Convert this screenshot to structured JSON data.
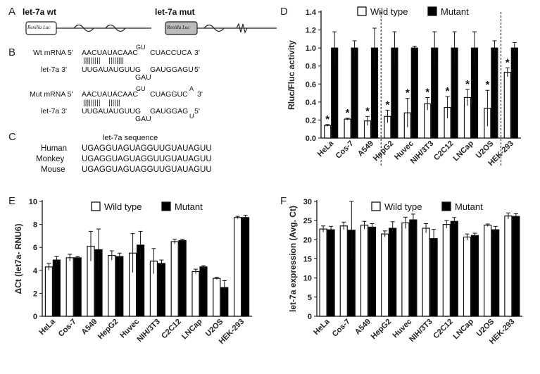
{
  "panels": {
    "A": "A",
    "B": "B",
    "C": "C",
    "D": "D",
    "E": "E",
    "F": "F"
  },
  "panel_a": {
    "wt_title": "let-7a wt",
    "mut_title": "let-7a mut",
    "box_label": "Renilla Luc"
  },
  "panel_b": {
    "wt_line1_prefix": "Wt mRNA 5'",
    "wt_line1_seq": "AACUAUACAAC",
    "wt_line1_bulge": "GU",
    "wt_line1_seq2": "CUACCUCA",
    "wt_line1_end": "3'",
    "wt_pairs": "|||||||||    ||||||||",
    "wt_line2_prefix": "let-7a 3'",
    "wt_line2_seq": "UUGAUAUGUUG",
    "wt_line2_seq2": "GAUGGAGU",
    "wt_line2_end": "5'",
    "wt_loop": "GAU",
    "mut_line1_prefix": "Mut mRNA 5'",
    "mut_line1_seq": "AACUAUACAAC",
    "mut_line1_bulge": "GU",
    "mut_line1_seq2": "CUAGGUC",
    "mut_line1_bulge2": "A",
    "mut_line1_end": "3'",
    "mut_pairs": "|||||||||    ||||||",
    "mut_line2_prefix": "let-7a 3'",
    "mut_line2_seq": "UUGAUAUGUUG",
    "mut_line2_seq2": "GAUGGAG",
    "mut_line2_end": "5'",
    "mut_loop": "GAU",
    "mut_loop2": "U"
  },
  "panel_c": {
    "title": "let-7a sequence",
    "rows": [
      {
        "organism": "Human",
        "sequence": "UGAGGUAGUAGGUUGUAUAGUU"
      },
      {
        "organism": "Monkey",
        "sequence": "UGAGGUAGUAGGUUGUAUAGUU"
      },
      {
        "organism": "Mouse",
        "sequence": "UGAGGUAGUAGGUUGUAUAGUU"
      }
    ]
  },
  "chart_data": [
    {
      "panel": "D",
      "type": "bar",
      "ylabel": "Rluc/Fluc activity",
      "ylim": [
        0,
        1.4
      ],
      "yticks": [
        "0.0",
        "0.2",
        "0.4",
        "0.6",
        "0.8",
        "1.0",
        "1.2",
        "1.4"
      ],
      "categories": [
        "HeLa",
        "Cos-7",
        "A549",
        "HepG2",
        "Huvec",
        "NIH/3T3",
        "C2C12",
        "LNCap",
        "U2OS",
        "HEK-293"
      ],
      "series": [
        {
          "name": "Wild type",
          "color": "#ffffff",
          "values": [
            0.14,
            0.21,
            0.19,
            0.24,
            0.28,
            0.38,
            0.34,
            0.45,
            0.33,
            0.73
          ],
          "errors": [
            0.01,
            0.01,
            0.05,
            0.07,
            0.16,
            0.07,
            0.12,
            0.09,
            0.2,
            0.05
          ]
        },
        {
          "name": "Mutant",
          "color": "#000000",
          "values": [
            1.0,
            1.0,
            1.0,
            1.0,
            1.0,
            1.0,
            1.0,
            1.0,
            1.0,
            1.0
          ],
          "errors": [
            0.18,
            0.08,
            0.22,
            0.18,
            0.02,
            0.18,
            0.18,
            0.18,
            0.08,
            0.06
          ]
        }
      ],
      "annotations": [
        "*",
        "*",
        "*",
        "*",
        "*",
        "*",
        "*",
        "*",
        "*",
        "*"
      ],
      "legend": "top"
    },
    {
      "panel": "E",
      "type": "bar",
      "ylabel": "ΔCt (let7a- RNU6)",
      "ylim": [
        0,
        10
      ],
      "yticks": [
        "0",
        "2",
        "4",
        "6",
        "8",
        "10"
      ],
      "categories": [
        "HeLa",
        "Cos-7",
        "A549",
        "HepG2",
        "Huvec",
        "NIH/3T3",
        "C2C12",
        "LNCap",
        "U2OS",
        "HEK-293"
      ],
      "series": [
        {
          "name": "Wild type",
          "color": "#ffffff",
          "values": [
            4.3,
            5.1,
            6.1,
            5.3,
            5.5,
            4.8,
            6.5,
            3.9,
            3.3,
            8.6
          ],
          "errors": [
            0.3,
            0.3,
            1.3,
            0.4,
            1.7,
            1.1,
            0.2,
            0.2,
            0.1,
            0.1
          ]
        },
        {
          "name": "Mutant",
          "color": "#000000",
          "values": [
            4.9,
            5.1,
            5.8,
            5.2,
            6.2,
            4.6,
            6.6,
            4.3,
            2.5,
            8.6
          ],
          "errors": [
            0.3,
            0.1,
            1.8,
            0.3,
            1.2,
            0.3,
            0.1,
            0.1,
            0.6,
            0.2
          ]
        }
      ],
      "legend": "top"
    },
    {
      "panel": "F",
      "type": "bar",
      "ylabel": "let-7a expression (Avg. Ct)",
      "ylim": [
        0,
        30
      ],
      "yticks": [
        "0",
        "5",
        "10",
        "15",
        "20",
        "25",
        "30"
      ],
      "categories": [
        "HeLa",
        "Cos-7",
        "A549",
        "HepG2",
        "Huvec",
        "NIH/3T3",
        "C2C12",
        "LNCap",
        "U2OS",
        "HEK-293"
      ],
      "series": [
        {
          "name": "Wild type",
          "color": "#ffffff",
          "values": [
            22.8,
            23.6,
            23.8,
            21.5,
            24.4,
            23.0,
            24.0,
            20.7,
            23.8,
            26.2
          ],
          "errors": [
            0.8,
            1.0,
            1.0,
            0.8,
            1.5,
            1.2,
            1.0,
            0.8,
            0.3,
            0.8
          ]
        },
        {
          "name": "Mutant",
          "color": "#000000",
          "values": [
            22.6,
            22.5,
            23.3,
            23.0,
            25.2,
            20.3,
            24.8,
            21.1,
            22.6,
            26.1
          ],
          "errors": [
            0.9,
            7.5,
            0.9,
            1.7,
            1.5,
            2.4,
            1.0,
            0.6,
            0.9,
            0.7
          ]
        }
      ],
      "legend": "top"
    }
  ]
}
